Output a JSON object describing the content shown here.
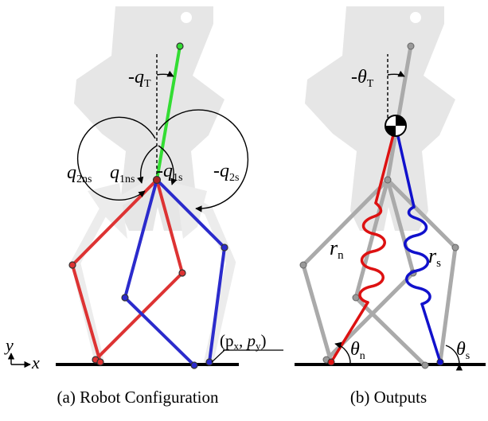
{
  "panels": [
    {
      "caption": "(a) Robot Configuration",
      "labels": {
        "q_T": "-q",
        "q_T_sub": "T",
        "q_2ns": "q",
        "q_2ns_sub": "2ns",
        "q_1ns": "q",
        "q_1ns_sub": "1ns",
        "q_1s": "-q",
        "q_1s_sub": "1s",
        "q_2s": "-q",
        "q_2s_sub": "2s",
        "foot_point": "(p",
        "foot_point_sub_x": "x",
        "foot_point_mid": ", p",
        "foot_point_sub_y": "y",
        "foot_point_end": ")",
        "axis_y": "y",
        "axis_x": "x"
      }
    },
    {
      "caption": "(b) Outputs",
      "labels": {
        "theta_T": "-θ",
        "theta_T_sub": "T",
        "r_n": "r",
        "r_n_sub": "n",
        "r_s": "r",
        "r_s_sub": "s",
        "theta_n": "θ",
        "theta_n_sub": "n",
        "theta_s": "θ",
        "theta_s_sub": "s"
      }
    }
  ],
  "colors": {
    "torso": "#33dd33",
    "non_stance_leg": "#dd3333",
    "stance_leg": "#2b2bcc",
    "gray_leg": "#aaaaaa",
    "silhouette": "#e6e6e6"
  }
}
